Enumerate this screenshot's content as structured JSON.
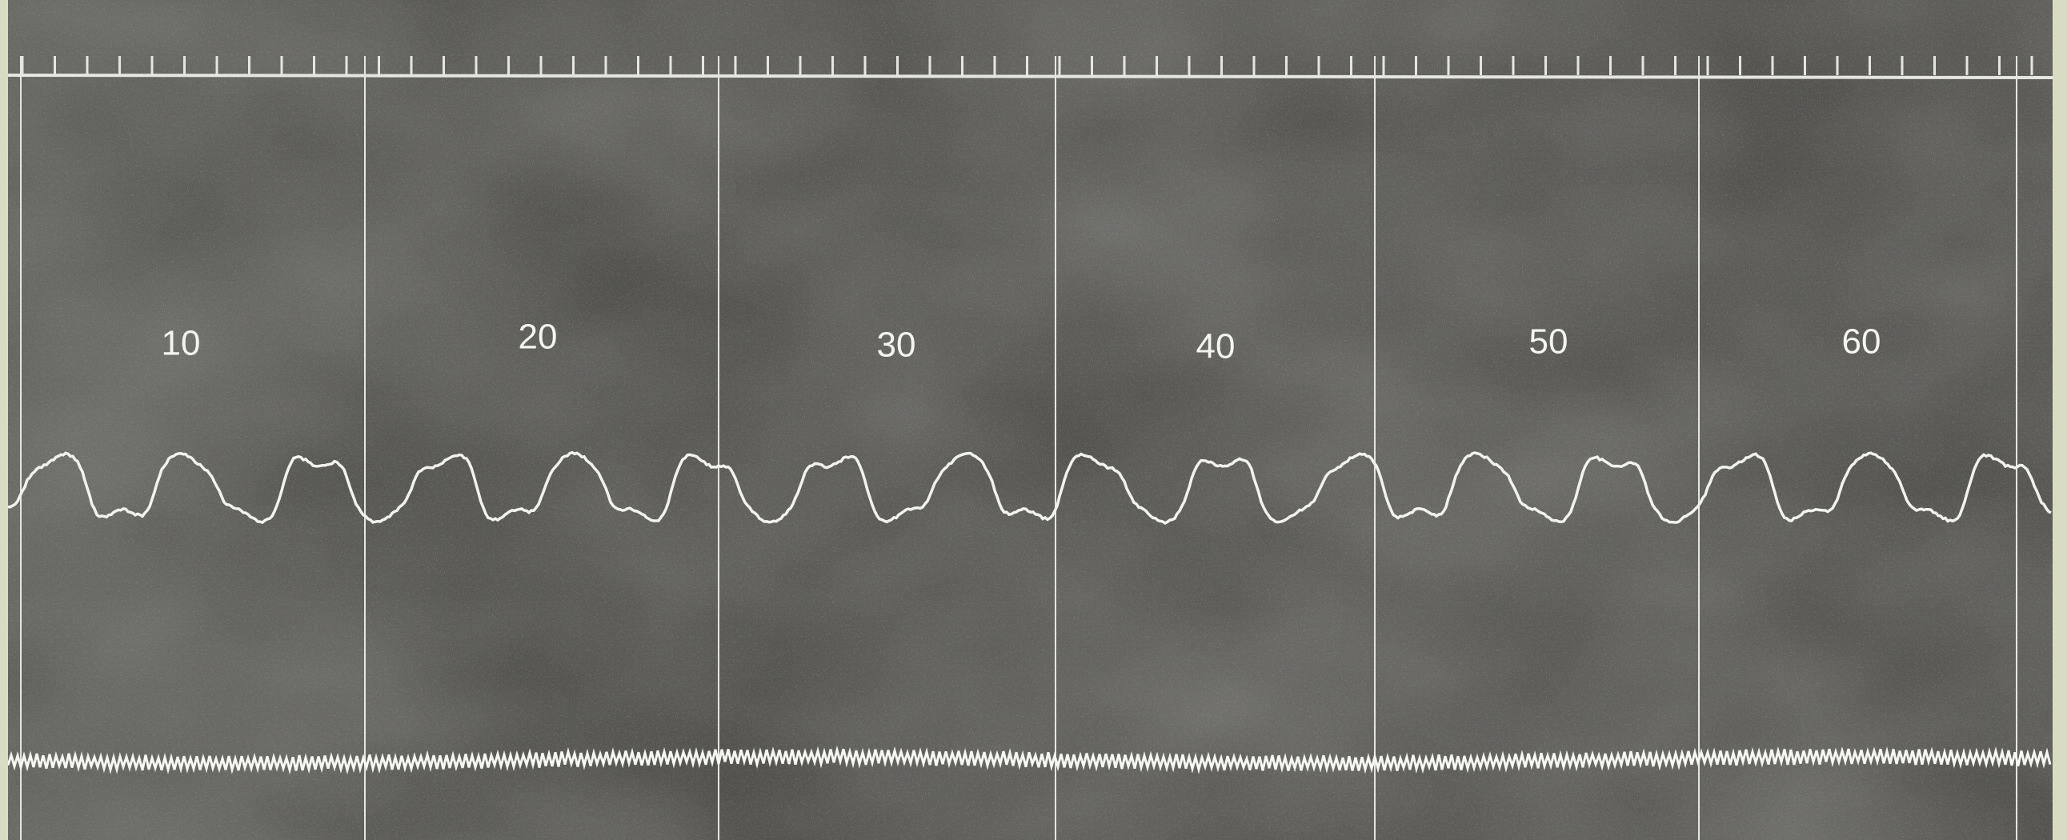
{
  "labels": [
    10,
    20,
    30,
    40,
    50,
    60
  ]
}
